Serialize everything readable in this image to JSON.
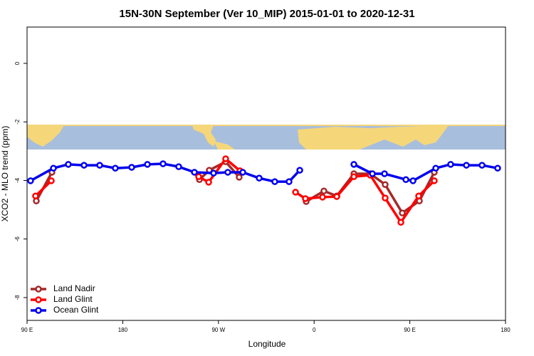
{
  "chart_data": {
    "type": "line",
    "title": "15N-30N September (Ver 10_MIP)   2015-01-01 to 2020-12-31",
    "x_label": "Longitude",
    "y_label": "XCO2 - MLO trend (ppm)",
    "xlim": [
      90,
      540
    ],
    "xticks": [
      {
        "value": 90,
        "label": "90 E"
      },
      180,
      {
        "value": 270,
        "label": "90 W"
      },
      {
        "value": 360,
        "label": "0"
      },
      {
        "value": 450,
        "label": "90 E"
      },
      {
        "value": 540,
        "label": "180"
      }
    ],
    "ylim": [
      -8.78,
      1.24
    ],
    "yticks": [
      0,
      -2,
      -4,
      -6,
      -8
    ],
    "legend": "bottom-left",
    "series": [
      {
        "name": "Land Nadir",
        "color": "#a52a2a",
        "x": [
          98.7,
          113.4,
          null,
          252.1,
          261.4,
          276.8,
          289.5,
          null,
          352.5,
          369.2,
          381.3,
          397.4,
          412.8,
          426.8,
          442.9,
          459.0,
          473.0
        ],
        "values": [
          -4.7,
          -3.72,
          null,
          -3.97,
          -3.65,
          -3.36,
          -3.89,
          null,
          -4.72,
          -4.36,
          -4.53,
          -3.77,
          -3.77,
          -4.14,
          -5.11,
          -4.7,
          -3.72
        ]
      },
      {
        "name": "Land Glint",
        "color": "#ff0000",
        "x": [
          98.0,
          112.8,
          null,
          251.4,
          260.8,
          276.8,
          290.2,
          null,
          342.5,
          351.8,
          367.9,
          381.3,
          397.4,
          412.8,
          426.8,
          441.6,
          458.3,
          473.0
        ],
        "values": [
          -4.53,
          -4.01,
          null,
          -3.87,
          -4.06,
          -3.26,
          -3.67,
          null,
          -4.4,
          -4.62,
          -4.57,
          -4.55,
          -3.87,
          -3.82,
          -4.6,
          -5.43,
          -4.53,
          -4.01
        ]
      },
      {
        "name": "Ocean Glint",
        "color": "#0000ee",
        "x": [
          93.3,
          114.8,
          128.8,
          143.6,
          158.3,
          173.0,
          188.4,
          203.2,
          217.9,
          232.6,
          247.4,
          265.4,
          278.8,
          292.9,
          308.3,
          323.0,
          336.4,
          346.5,
          null,
          397.4,
          414.8,
          426.2,
          446.3,
          453.0,
          474.4,
          488.4,
          503.2,
          517.9,
          532.6
        ],
        "values": [
          -4.01,
          -3.58,
          -3.45,
          -3.48,
          -3.48,
          -3.58,
          -3.55,
          -3.45,
          -3.43,
          -3.53,
          -3.72,
          -3.75,
          -3.72,
          -3.72,
          -3.92,
          -4.04,
          -4.04,
          -3.65,
          null,
          -3.45,
          -3.77,
          -3.77,
          -3.97,
          -4.01,
          -3.58,
          -3.45,
          -3.48,
          -3.48,
          -3.58
        ]
      }
    ]
  }
}
